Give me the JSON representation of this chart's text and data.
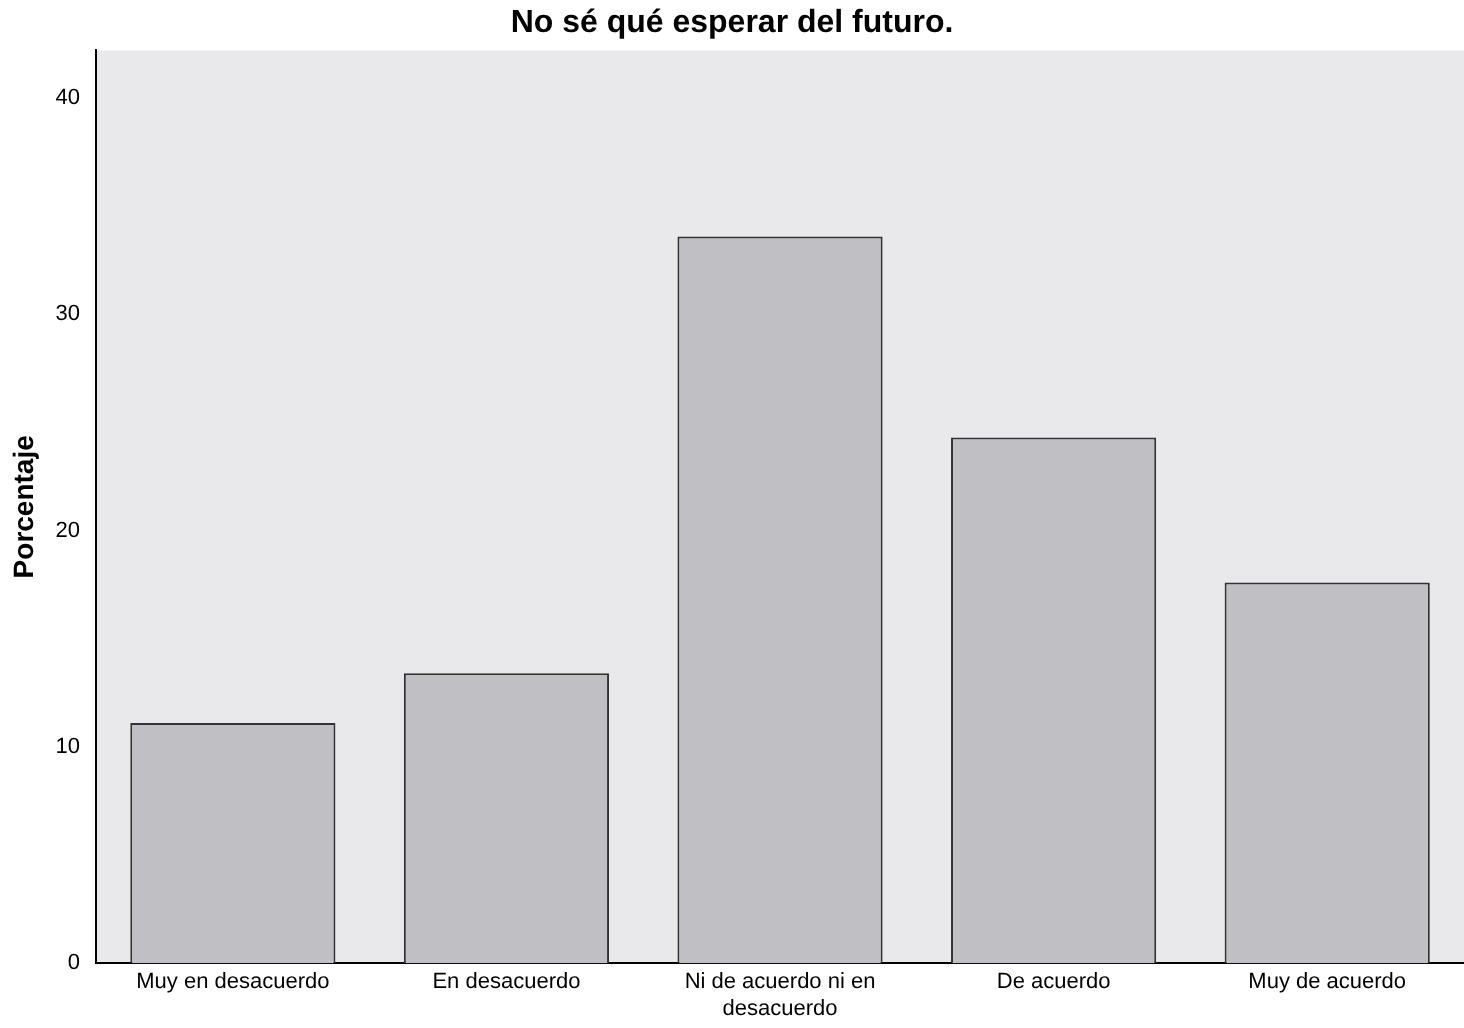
{
  "chart_data": {
    "type": "bar",
    "title": "No sé qué esperar del futuro.",
    "ylabel": "Porcentaje",
    "categories": [
      "Muy en desacuerdo",
      "En desacuerdo",
      "Ni de acuerdo ni en desacuerdo",
      "De acuerdo",
      "Muy de acuerdo"
    ],
    "values": [
      11.1,
      13.4,
      33.6,
      24.3,
      17.6
    ],
    "color": "#c0c0c4",
    "ylim": [
      0,
      42.2
    ],
    "yticks": [
      0,
      10,
      20,
      30,
      40
    ],
    "grid": false,
    "legend": false
  }
}
